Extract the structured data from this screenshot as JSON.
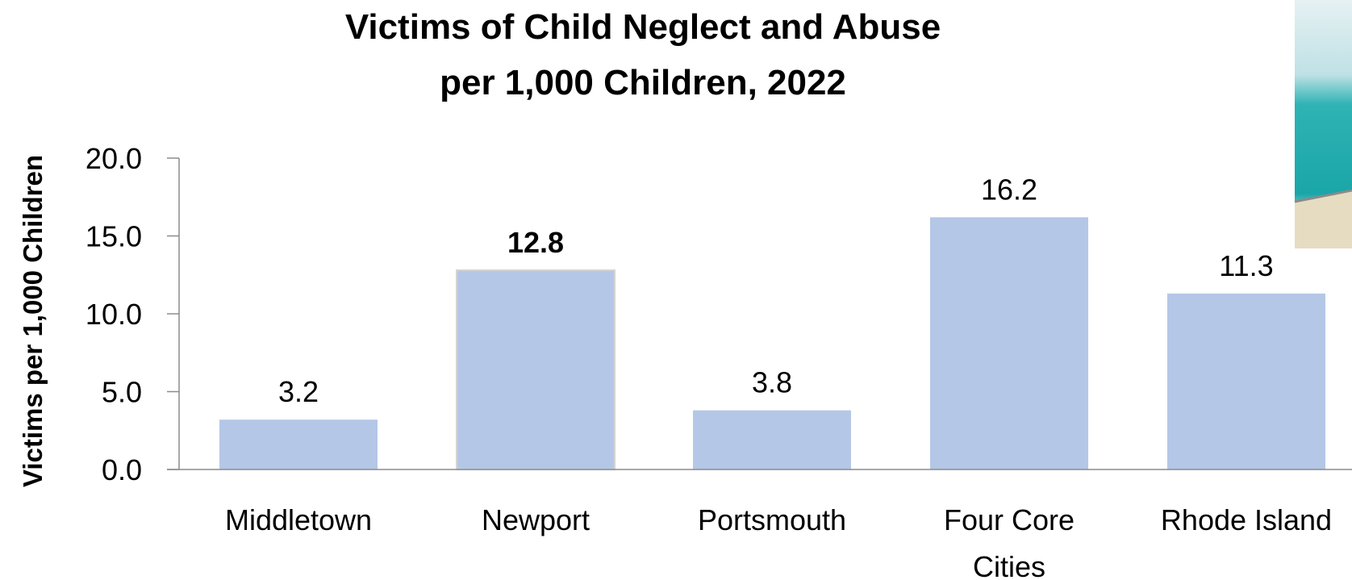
{
  "chart_data": {
    "type": "bar",
    "title_lines": [
      "Victims of Child Neglect and Abuse",
      "per 1,000 Children, 2022"
    ],
    "ylabel": "Victims per 1,000 Children",
    "xlabel": "",
    "categories": [
      [
        "Middletown"
      ],
      [
        "Newport"
      ],
      [
        "Portsmouth"
      ],
      [
        "Four Core",
        "Cities"
      ],
      [
        "Rhode Island"
      ]
    ],
    "values": [
      3.2,
      12.8,
      3.8,
      16.2,
      11.3
    ],
    "data_labels": [
      "3.2",
      "12.8",
      "3.8",
      "16.2",
      "11.3"
    ],
    "highlighted_index": 1,
    "ylim": [
      0,
      20
    ],
    "yticks": [
      "0.0",
      "5.0",
      "10.0",
      "15.0",
      "20.0"
    ],
    "ytick_values": [
      0,
      5,
      10,
      15,
      20
    ],
    "grid": false,
    "bar_color": "#b4c7e7",
    "axis_color": "#8c8c8c",
    "decorative_image": "beach-photo-corner"
  }
}
